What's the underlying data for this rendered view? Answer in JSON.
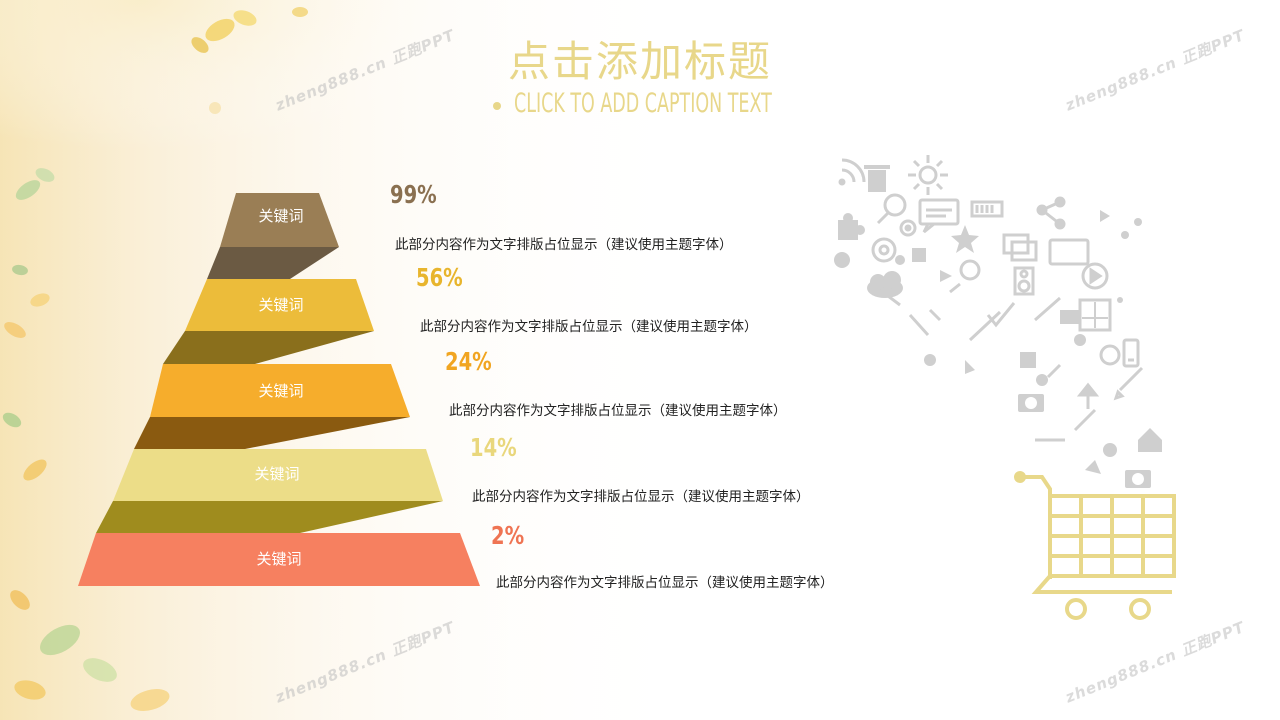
{
  "title": "点击添加标题",
  "subtitle": "CLICK TO ADD CAPTION TEXT",
  "pyramid": [
    {
      "label": "关键词",
      "percent": "99%",
      "text": "此部分内容作为文字排版占位显示（建议使用主题字体）",
      "color": "#9a7e55",
      "pct_color": "#8a7050"
    },
    {
      "label": "关键词",
      "percent": "56%",
      "text": "此部分内容作为文字排版占位显示（建议使用主题字体）",
      "color": "#ecbc3a",
      "pct_color": "#e8b52d"
    },
    {
      "label": "关键词",
      "percent": "24%",
      "text": "此部分内容作为文字排版占位显示（建议使用主题字体）",
      "color": "#f6ad2c",
      "pct_color": "#f1a521"
    },
    {
      "label": "关键词",
      "percent": "14%",
      "text": "此部分内容作为文字排版占位显示（建议使用主题字体）",
      "color": "#ecdd88",
      "pct_color": "#e9d77c"
    },
    {
      "label": "关键词",
      "percent": "2%",
      "text": "此部分内容作为文字排版占位显示（建议使用主题字体）",
      "color": "#f68060",
      "pct_color": "#ef7453"
    }
  ],
  "connector_colors": [
    "#6b5a43",
    "#8a6f1c",
    "#8a5a10",
    "#9f8c1e"
  ],
  "watermark": "zheng888.cn 正跑PPT",
  "icons": [
    "wifi-icon",
    "trash-icon",
    "sun-icon",
    "search-icon",
    "chat-bubble-icon",
    "battery-icon",
    "share-icon",
    "puzzle-icon",
    "gear-icon",
    "star-icon",
    "at-sign-icon",
    "monitor-icon",
    "play-icon",
    "cloud-icon",
    "speaker-icon",
    "pin-icon",
    "camera-icon",
    "pencil-icon",
    "home-icon",
    "phone-icon",
    "checkmark-icon",
    "shopping-cart-icon"
  ],
  "accent_color": "#e8d78a"
}
